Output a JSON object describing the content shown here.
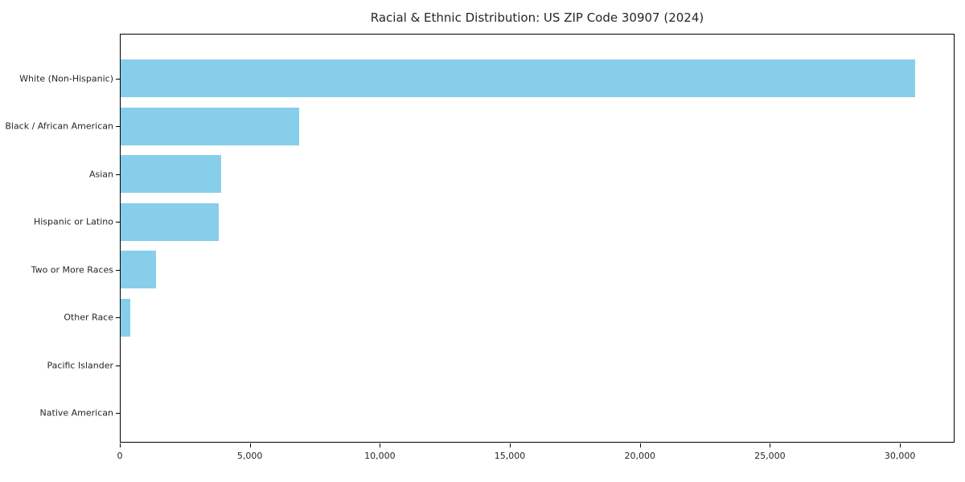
{
  "chart_data": {
    "type": "bar",
    "orientation": "horizontal",
    "title": "Racial & Ethnic Distribution: US ZIP Code 30907 (2024)",
    "categories": [
      "White (Non-Hispanic)",
      "Black / African American",
      "Asian",
      "Hispanic or Latino",
      "Two or More Races",
      "Other Race",
      "Pacific Islander",
      "Native American"
    ],
    "values": [
      30550,
      6850,
      3880,
      3780,
      1370,
      380,
      0,
      0
    ],
    "xlabel": "",
    "ylabel": "",
    "xlim": [
      0,
      32100
    ],
    "x_ticks": [
      0,
      5000,
      10000,
      15000,
      20000,
      25000,
      30000
    ],
    "x_tick_labels": [
      "0",
      "5,000",
      "10,000",
      "15,000",
      "20,000",
      "25,000",
      "30,000"
    ],
    "grid": false,
    "legend": null,
    "bar_color": "#87CEEB",
    "background_color": "#ffffff",
    "spine_color": "#000000"
  }
}
